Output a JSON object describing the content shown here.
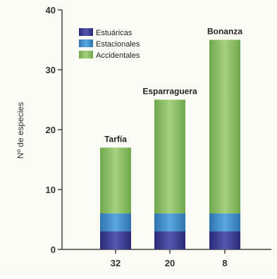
{
  "chart_data": {
    "type": "bar",
    "stacked": true,
    "categories": [
      "32",
      "20",
      "8"
    ],
    "bar_labels": [
      "Tarfía",
      "Esparraguera",
      "Bonanza"
    ],
    "series": [
      {
        "name": "Estuáricas",
        "values": [
          3,
          3,
          3
        ],
        "color": "#3f3f95"
      },
      {
        "name": "Estacionales",
        "values": [
          3,
          3,
          3
        ],
        "color": "#3f8cc9"
      },
      {
        "name": "Accidentales",
        "values": [
          11,
          19,
          29
        ],
        "color": "#88bd63"
      }
    ],
    "ylabel": "Nº de especies",
    "ylim": [
      0,
      40
    ],
    "yticks": [
      0,
      10,
      20,
      30,
      40
    ],
    "grid": false,
    "legend_position": "top-left"
  }
}
